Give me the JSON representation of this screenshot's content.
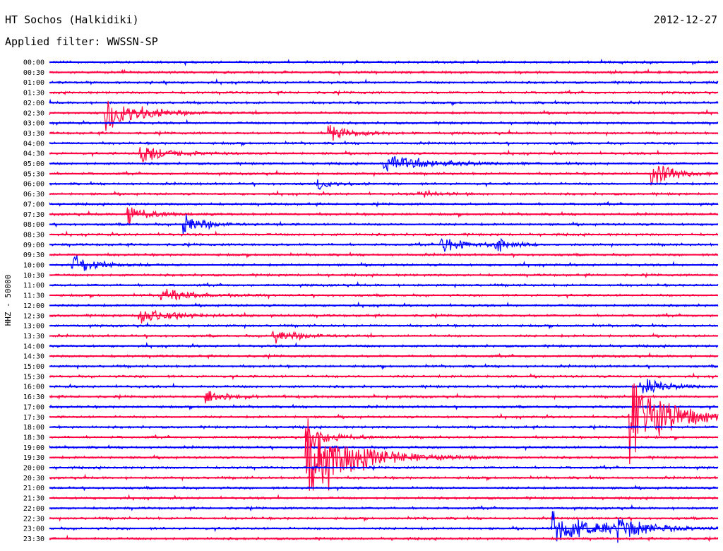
{
  "header": {
    "station": "HT Sochos (Halkidiki)",
    "date": "2012-12-27",
    "filter": "Applied filter: WWSSN-SP"
  },
  "chart_data": {
    "type": "line",
    "title": "HT Sochos (Halkidiki)",
    "ylabel": "HHZ - 50000",
    "xlabel": "",
    "colors": [
      "#0000ff",
      "#ff0040"
    ],
    "tick_labels": [
      "00:00",
      "00:30",
      "01:00",
      "01:30",
      "02:00",
      "02:30",
      "03:00",
      "03:30",
      "04:00",
      "04:30",
      "05:00",
      "05:30",
      "06:00",
      "06:30",
      "07:00",
      "07:30",
      "08:00",
      "08:30",
      "09:00",
      "09:30",
      "10:00",
      "10:30",
      "11:00",
      "11:30",
      "12:00",
      "12:30",
      "13:00",
      "13:30",
      "14:00",
      "14:30",
      "15:00",
      "15:30",
      "16:00",
      "16:30",
      "17:00",
      "17:30",
      "18:00",
      "18:30",
      "19:00",
      "19:30",
      "20:00",
      "20:30",
      "21:00",
      "21:30",
      "22:00",
      "22:30",
      "23:00",
      "23:30"
    ],
    "trace_minutes": 30,
    "events": [
      {
        "trace": "02:30",
        "minute": 2.5,
        "amplitude": 1.6,
        "duration": 2.5
      },
      {
        "trace": "03:30",
        "minute": 12.5,
        "amplitude": 0.9,
        "duration": 1.5
      },
      {
        "trace": "04:30",
        "minute": 4,
        "amplitude": 1.0,
        "duration": 2
      },
      {
        "trace": "05:00",
        "minute": 15,
        "amplitude": 0.8,
        "duration": 3
      },
      {
        "trace": "05:30",
        "minute": 27,
        "amplitude": 1.4,
        "duration": 1.5
      },
      {
        "trace": "06:00",
        "minute": 12,
        "amplitude": 0.6,
        "duration": 1
      },
      {
        "trace": "06:30",
        "minute": 16.5,
        "amplitude": 0.6,
        "duration": 1
      },
      {
        "trace": "07:30",
        "minute": 3.5,
        "amplitude": 0.9,
        "duration": 1.5
      },
      {
        "trace": "08:00",
        "minute": 6,
        "amplitude": 1.1,
        "duration": 1.5
      },
      {
        "trace": "09:00",
        "minute": 17.5,
        "amplitude": 0.9,
        "duration": 1.5
      },
      {
        "trace": "09:00",
        "minute": 20,
        "amplitude": 0.7,
        "duration": 1
      },
      {
        "trace": "10:00",
        "minute": 1,
        "amplitude": 1.0,
        "duration": 1.5
      },
      {
        "trace": "11:30",
        "minute": 5,
        "amplitude": 0.7,
        "duration": 2
      },
      {
        "trace": "12:30",
        "minute": 4,
        "amplitude": 0.8,
        "duration": 2
      },
      {
        "trace": "13:30",
        "minute": 10,
        "amplitude": 0.7,
        "duration": 2
      },
      {
        "trace": "16:00",
        "minute": 26.5,
        "amplitude": 0.9,
        "duration": 1.5
      },
      {
        "trace": "16:30",
        "minute": 7,
        "amplitude": 0.6,
        "duration": 2
      },
      {
        "trace": "17:30",
        "minute": 26,
        "amplitude": 4.5,
        "duration": 2.5
      },
      {
        "trace": "18:30",
        "minute": 11.5,
        "amplitude": 1.5,
        "duration": 1.5
      },
      {
        "trace": "19:30",
        "minute": 11.5,
        "amplitude": 4.8,
        "duration": 3
      },
      {
        "trace": "23:00",
        "minute": 22.5,
        "amplitude": 1.6,
        "duration": 3
      },
      {
        "trace": "23:00",
        "minute": 25.5,
        "amplitude": 1.0,
        "duration": 2
      }
    ]
  }
}
